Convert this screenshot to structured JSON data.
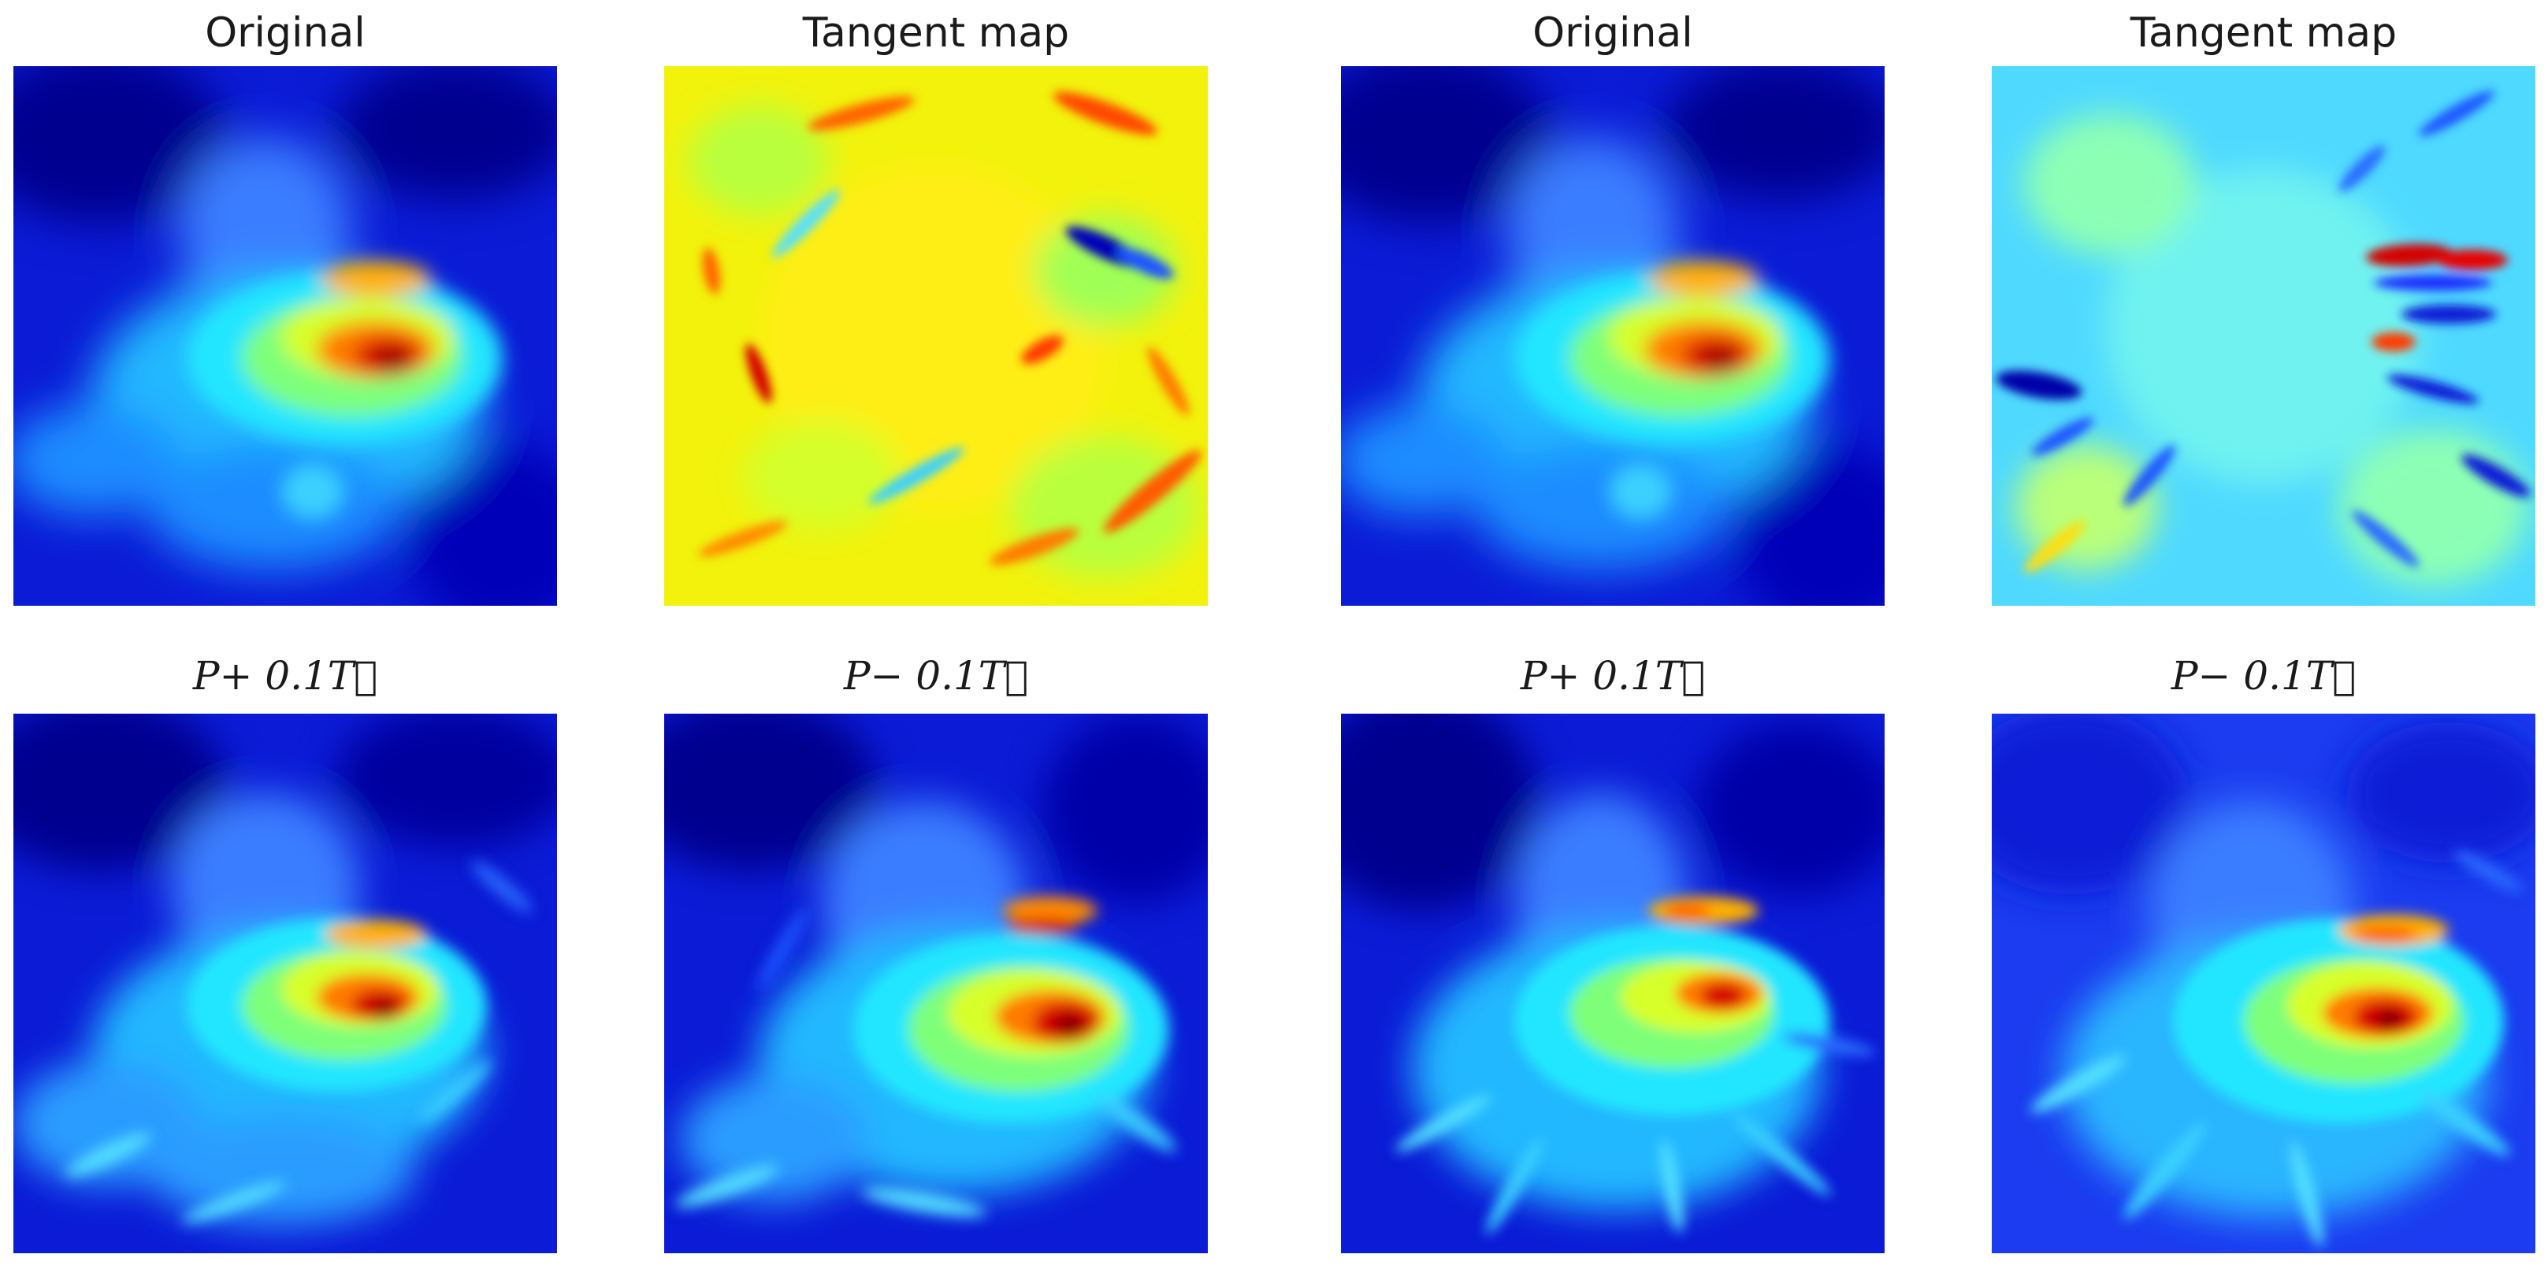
{
  "figure": {
    "panels": [
      {
        "title": "Original",
        "math": false,
        "content": "original",
        "colormap": "jet"
      },
      {
        "title": "Tangent map",
        "math": false,
        "content": "tangent-rotational",
        "colormap": "jet"
      },
      {
        "title": "Original",
        "math": false,
        "content": "original",
        "colormap": "jet"
      },
      {
        "title": "Tangent map",
        "math": false,
        "content": "tangent-radial",
        "colormap": "jet"
      },
      {
        "title": "P+ 0.1T⃗",
        "math": true,
        "content": "perturbed-plus-rotational",
        "colormap": "jet"
      },
      {
        "title": "P− 0.1T⃗",
        "math": true,
        "content": "perturbed-minus-rotational",
        "colormap": "jet"
      },
      {
        "title": "P+ 0.1T⃗",
        "math": true,
        "content": "perturbed-plus-radial",
        "colormap": "jet"
      },
      {
        "title": "P− 0.1T⃗",
        "math": true,
        "content": "perturbed-minus-radial",
        "colormap": "jet"
      }
    ]
  },
  "colors": {
    "jet_dark_blue": "#00008f",
    "jet_blue": "#0b1bd6",
    "jet_cyan": "#21e6ff",
    "jet_green": "#7dff7a",
    "jet_yellow": "#ffef0a",
    "jet_orange": "#ff7a00",
    "jet_red": "#d40000",
    "jet_dark_red": "#800000"
  }
}
